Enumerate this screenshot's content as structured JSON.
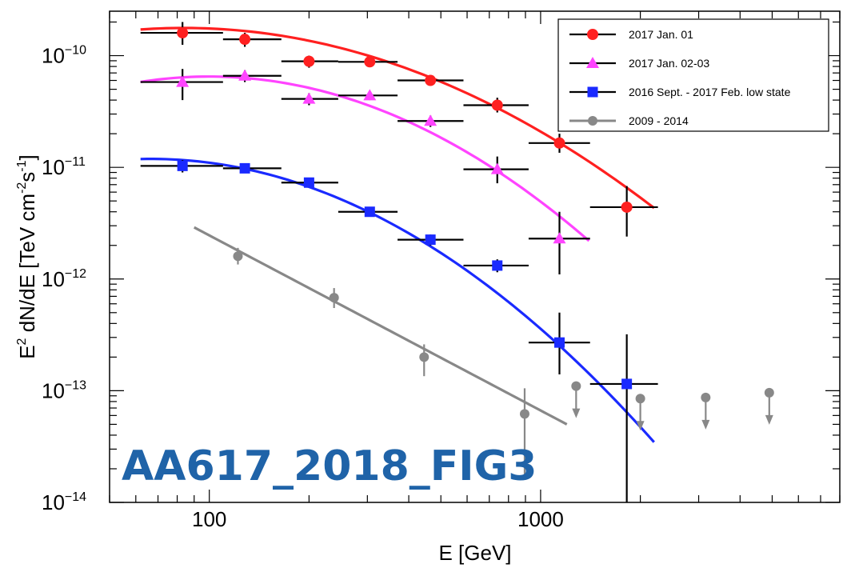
{
  "chart_data": {
    "type": "scatter",
    "x_scale": "log",
    "y_scale": "log",
    "xlabel": "E [GeV]",
    "ylabel_parts": [
      "E",
      "2",
      " dN/dE [TeV cm",
      "-2",
      "s",
      "-1",
      "]"
    ],
    "xlim": [
      50,
      8000
    ],
    "ylim": [
      1e-14,
      2.5e-10
    ],
    "x_tick_labels": [
      {
        "value": 100,
        "label": "100"
      },
      {
        "value": 1000,
        "label": "1000"
      }
    ],
    "y_tick_labels": [
      {
        "value": 1e-10,
        "base": "10",
        "exp": "−10"
      },
      {
        "value": 1e-11,
        "base": "10",
        "exp": "−11"
      },
      {
        "value": 1e-12,
        "base": "10",
        "exp": "−12"
      },
      {
        "value": 1e-13,
        "base": "10",
        "exp": "−13"
      },
      {
        "value": 1e-14,
        "base": "10",
        "exp": "−14"
      }
    ],
    "legend": {
      "placement": "top-right",
      "entries": [
        {
          "label": "2017 Jan. 01",
          "color": "#ff2020",
          "marker": "circle"
        },
        {
          "label": "2017 Jan. 02-03",
          "color": "#ff44ff",
          "marker": "triangle"
        },
        {
          "label": "2016 Sept. - 2017 Feb. low state",
          "color": "#1a2aff",
          "marker": "square"
        },
        {
          "label": "2009 - 2014",
          "color": "#888888",
          "marker": "circle-small"
        }
      ]
    },
    "series": [
      {
        "name": "2017 Jan. 01",
        "color": "#ff2020",
        "marker": "circle",
        "points": [
          {
            "x": 83,
            "y": 1.6e-10,
            "xlo": 62,
            "xhi": 110,
            "ylo": 1.25e-10,
            "yhi": 2e-10
          },
          {
            "x": 128,
            "y": 1.4e-10,
            "xlo": 110,
            "xhi": 165,
            "ylo": 1.2e-10,
            "yhi": 1.6e-10
          },
          {
            "x": 200,
            "y": 8.9e-11,
            "xlo": 165,
            "xhi": 245,
            "ylo": 7.8e-11,
            "yhi": 1e-10
          },
          {
            "x": 305,
            "y": 8.8e-11,
            "xlo": 245,
            "xhi": 370,
            "ylo": 8e-11,
            "yhi": 9.5e-11
          },
          {
            "x": 465,
            "y": 6e-11,
            "xlo": 370,
            "xhi": 585,
            "ylo": 5.5e-11,
            "yhi": 6.5e-11
          },
          {
            "x": 740,
            "y": 3.6e-11,
            "xlo": 585,
            "xhi": 920,
            "ylo": 3.1e-11,
            "yhi": 4.2e-11
          },
          {
            "x": 1140,
            "y": 1.65e-11,
            "xlo": 920,
            "xhi": 1410,
            "ylo": 1.35e-11,
            "yhi": 2e-11
          },
          {
            "x": 1820,
            "y": 4.4e-12,
            "xlo": 1410,
            "xhi": 2260,
            "ylo": 2.4e-12,
            "yhi": 6.8e-12
          }
        ],
        "fit": {
          "norm": 1.75e-10,
          "e0": 100,
          "alpha": 0.123,
          "beta": 0.8,
          "xmin": 62,
          "xmax": 2200
        }
      },
      {
        "name": "2017 Jan. 02-03",
        "color": "#ff44ff",
        "marker": "triangle",
        "points": [
          {
            "x": 83,
            "y": 5.8e-11,
            "xlo": 62,
            "xhi": 110,
            "ylo": 4e-11,
            "yhi": 7.6e-11
          },
          {
            "x": 128,
            "y": 6.6e-11,
            "xlo": 110,
            "xhi": 165,
            "ylo": 5.8e-11,
            "yhi": 7.4e-11
          },
          {
            "x": 200,
            "y": 4.1e-11,
            "xlo": 165,
            "xhi": 245,
            "ylo": 3.6e-11,
            "yhi": 4.6e-11
          },
          {
            "x": 305,
            "y": 4.4e-11,
            "xlo": 245,
            "xhi": 370,
            "ylo": 4e-11,
            "yhi": 4.8e-11
          },
          {
            "x": 465,
            "y": 2.6e-11,
            "xlo": 370,
            "xhi": 585,
            "ylo": 2.3e-11,
            "yhi": 2.9e-11
          },
          {
            "x": 740,
            "y": 9.6e-12,
            "xlo": 585,
            "xhi": 920,
            "ylo": 7.2e-12,
            "yhi": 1.25e-11
          },
          {
            "x": 1140,
            "y": 2.3e-12,
            "xlo": 920,
            "xhi": 1410,
            "ylo": 1.1e-12,
            "yhi": 4e-12
          }
        ],
        "fit": {
          "norm": 6.5e-11,
          "e0": 100,
          "alpha": 0.0,
          "beta": 1.12,
          "xmin": 62,
          "xmax": 1400
        }
      },
      {
        "name": "2016 Sept. - 2017 Feb. low state",
        "color": "#1a2aff",
        "marker": "square",
        "points": [
          {
            "x": 83,
            "y": 1.03e-11,
            "xlo": 62,
            "xhi": 110,
            "ylo": 9e-12,
            "yhi": 1.16e-11
          },
          {
            "x": 128,
            "y": 9.8e-12,
            "xlo": 110,
            "xhi": 165,
            "ylo": 9.2e-12,
            "yhi": 1.04e-11
          },
          {
            "x": 200,
            "y": 7.3e-12,
            "xlo": 165,
            "xhi": 245,
            "ylo": 6.9e-12,
            "yhi": 7.7e-12
          },
          {
            "x": 305,
            "y": 4e-12,
            "xlo": 245,
            "xhi": 370,
            "ylo": 3.7e-12,
            "yhi": 4.3e-12
          },
          {
            "x": 465,
            "y": 2.25e-12,
            "xlo": 370,
            "xhi": 585,
            "ylo": 2e-12,
            "yhi": 2.5e-12
          },
          {
            "x": 740,
            "y": 1.32e-12,
            "xlo": 585,
            "xhi": 920,
            "ylo": 1.15e-12,
            "yhi": 1.5e-12
          },
          {
            "x": 1140,
            "y": 2.7e-13,
            "xlo": 920,
            "xhi": 1410,
            "ylo": 1.4e-13,
            "yhi": 5e-13
          },
          {
            "x": 1820,
            "y": 1.15e-13,
            "xlo": 1410,
            "xhi": 2260,
            "ylo": 1e-14,
            "yhi": 3.2e-13
          }
        ],
        "fit": {
          "norm": 1.1e-11,
          "e0": 100,
          "alpha": 0.387,
          "beta": 1.1,
          "xmin": 62,
          "xmax": 2200
        }
      },
      {
        "name": "2009 - 2014",
        "color": "#888888",
        "marker": "circle-small",
        "points": [
          {
            "x": 122,
            "y": 1.6e-12,
            "ylo": 1.35e-12,
            "yhi": 1.9e-12
          },
          {
            "x": 238,
            "y": 6.8e-13,
            "ylo": 5.5e-13,
            "yhi": 8.3e-13
          },
          {
            "x": 445,
            "y": 2e-13,
            "ylo": 1.35e-13,
            "yhi": 2.6e-13
          },
          {
            "x": 895,
            "y": 6.2e-14,
            "ylo": 1.6e-14,
            "yhi": 1.05e-13
          }
        ],
        "upper_limits": [
          {
            "x": 1280,
            "y": 1.1e-13
          },
          {
            "x": 2000,
            "y": 8.5e-14
          },
          {
            "x": 3150,
            "y": 8.7e-14
          },
          {
            "x": 4900,
            "y": 9.6e-14
          }
        ],
        "fit": {
          "type": "power-law",
          "y_at_xmin": 2.9e-12,
          "y_at_xmax": 5e-14,
          "xmin": 90,
          "xmax": 1200
        }
      }
    ]
  },
  "watermark": {
    "text": "AA617_2018_FIG3",
    "color": "#1f63a8"
  }
}
